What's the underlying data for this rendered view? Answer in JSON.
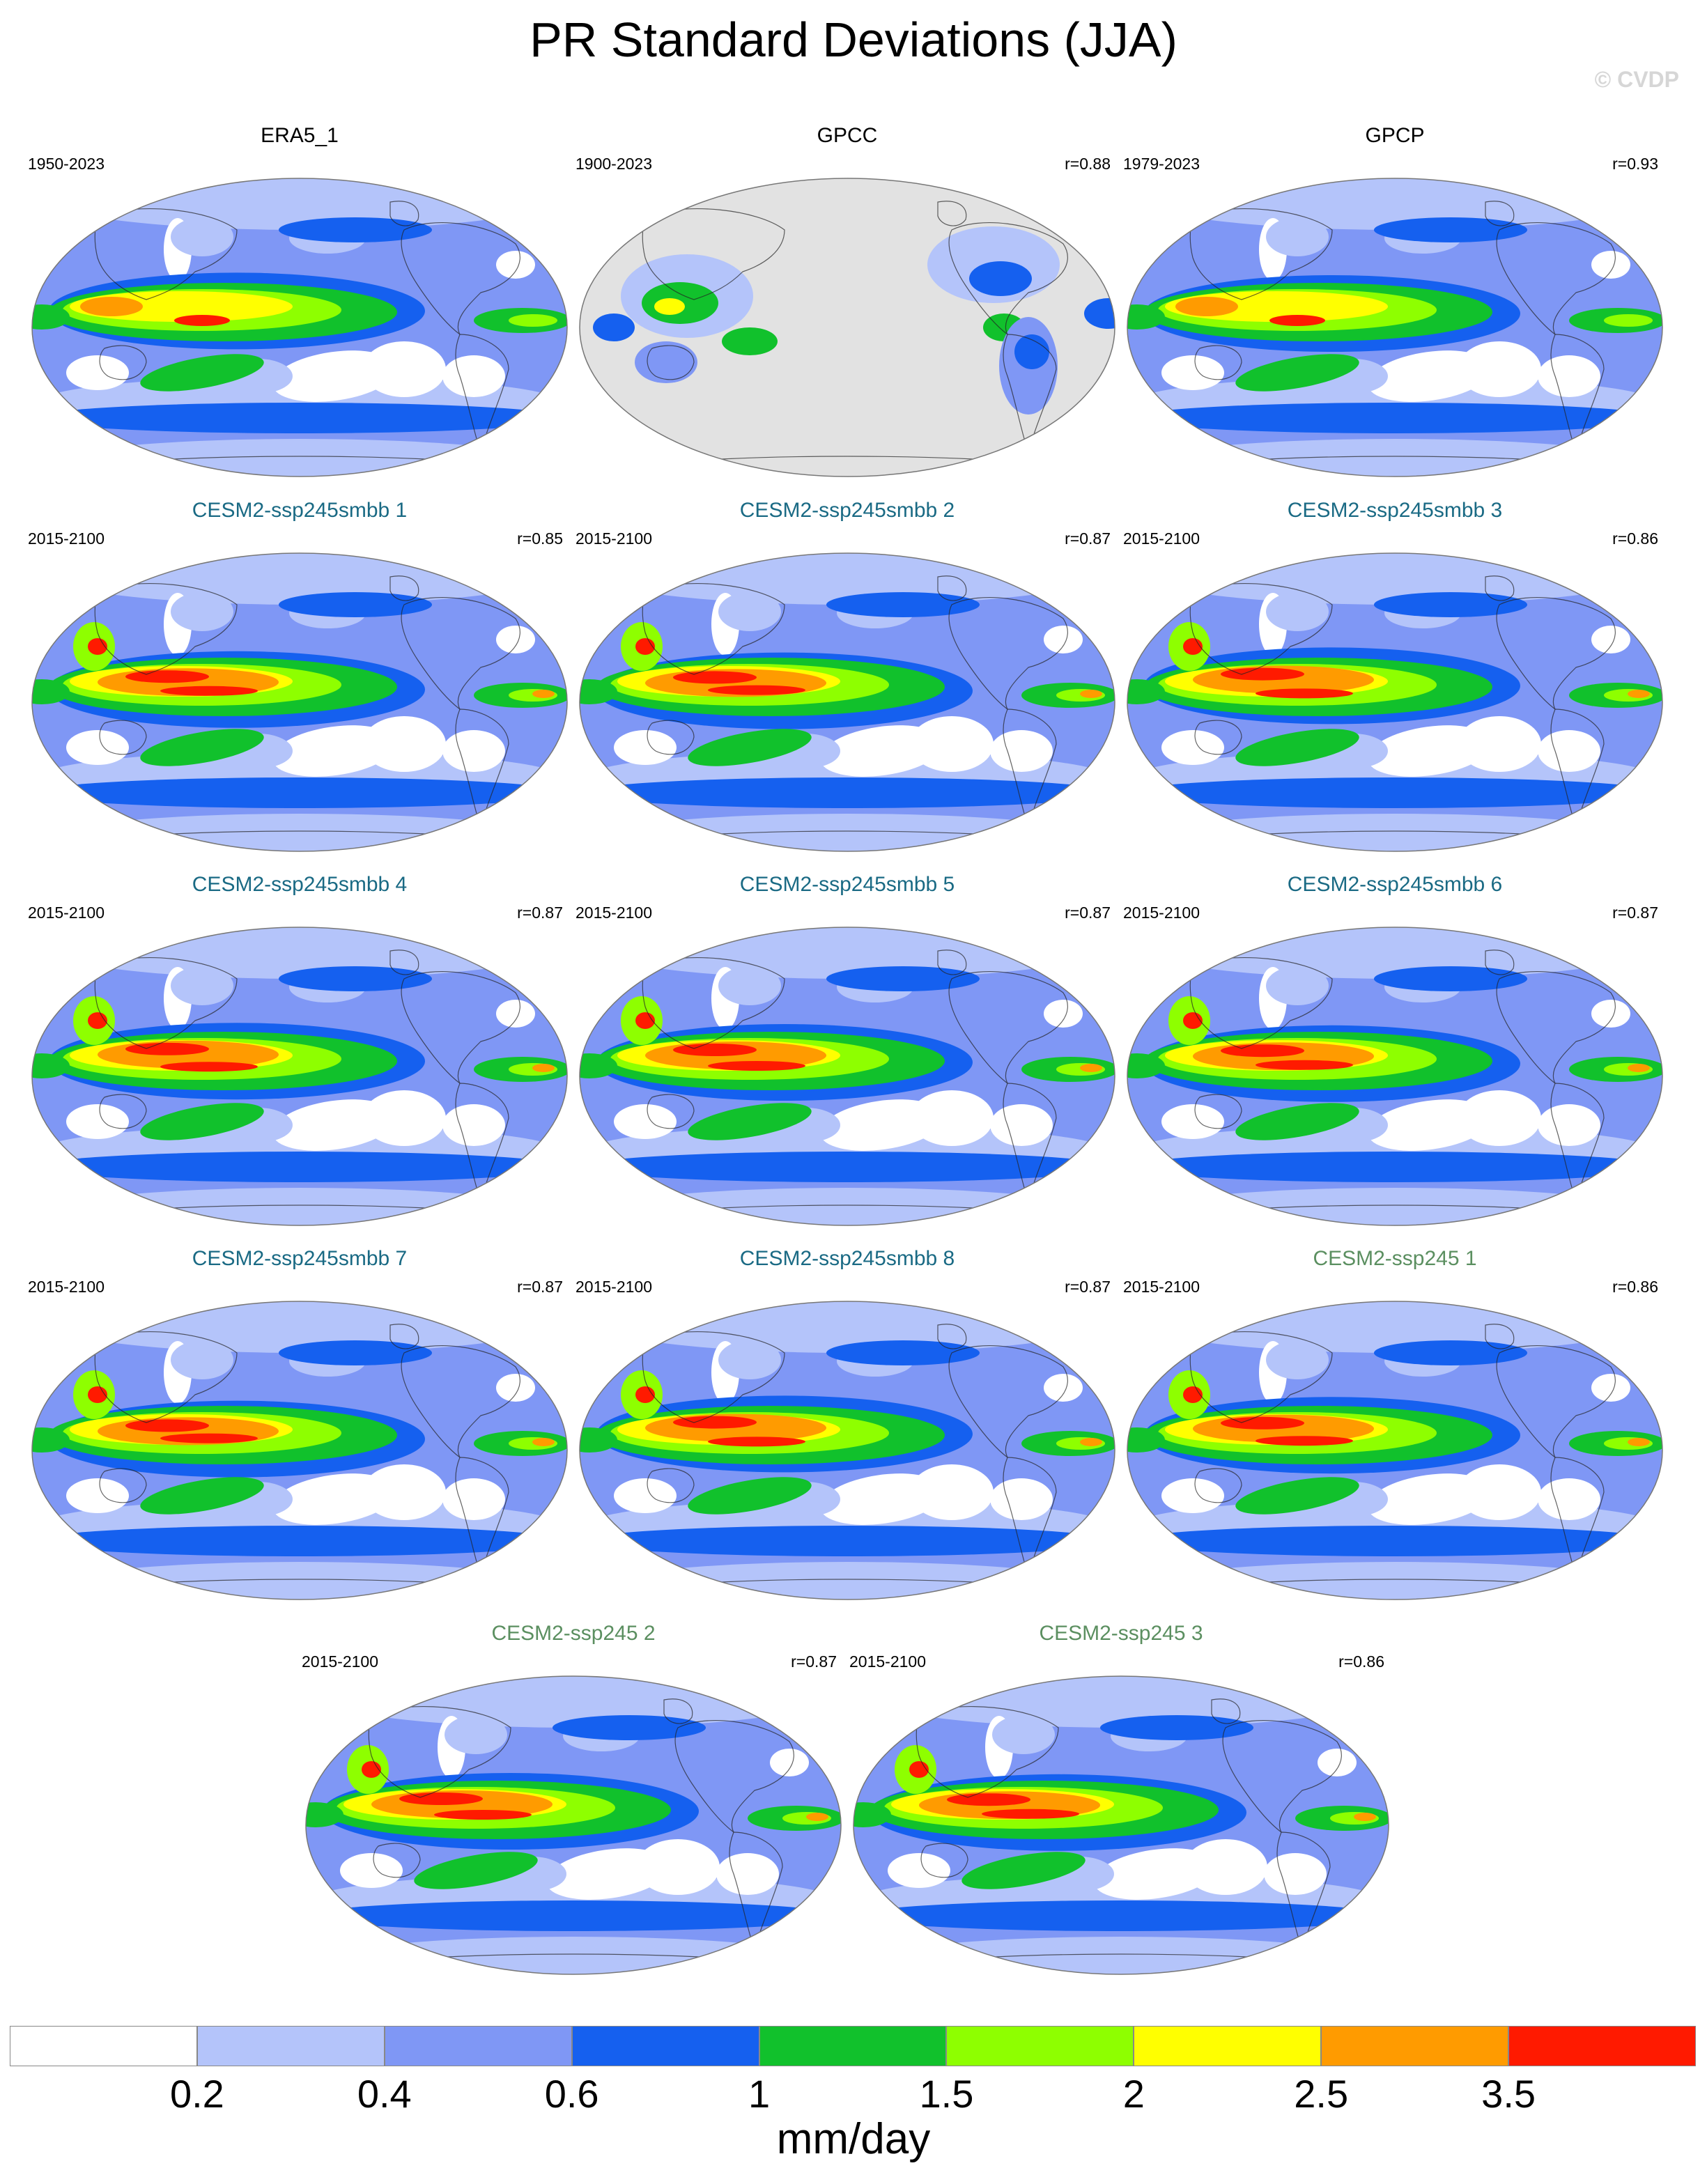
{
  "title": "PR Standard Deviations (JJA)",
  "credit": "© CVDP",
  "colors": {
    "levels": [
      "#ffffff",
      "#b4c4fa",
      "#7f97f5",
      "#1560ef",
      "#11c12c",
      "#8eff00",
      "#ffff00",
      "#ff9b00",
      "#ff1a00"
    ],
    "land_mask": "#e2e2e2",
    "coast": "#222222"
  },
  "panels": [
    {
      "title": "ERA5_1",
      "period": "1950-2023",
      "r": "",
      "kind": "obs",
      "variant": 0
    },
    {
      "title": "GPCC",
      "period": "1900-2023",
      "r": "r=0.88",
      "kind": "obs",
      "variant": 1,
      "land_only": true
    },
    {
      "title": "GPCP",
      "period": "1979-2023",
      "r": "r=0.93",
      "kind": "obs",
      "variant": 2
    },
    {
      "title": "CESM2-ssp245smbb 1",
      "period": "2015-2100",
      "r": "r=0.85",
      "kind": "smbb",
      "variant": 3
    },
    {
      "title": "CESM2-ssp245smbb 2",
      "period": "2015-2100",
      "r": "r=0.87",
      "kind": "smbb",
      "variant": 4
    },
    {
      "title": "CESM2-ssp245smbb 3",
      "period": "2015-2100",
      "r": "r=0.86",
      "kind": "smbb",
      "variant": 5
    },
    {
      "title": "CESM2-ssp245smbb 4",
      "period": "2015-2100",
      "r": "r=0.87",
      "kind": "smbb",
      "variant": 6
    },
    {
      "title": "CESM2-ssp245smbb 5",
      "period": "2015-2100",
      "r": "r=0.87",
      "kind": "smbb",
      "variant": 7
    },
    {
      "title": "CESM2-ssp245smbb 6",
      "period": "2015-2100",
      "r": "r=0.87",
      "kind": "smbb",
      "variant": 8
    },
    {
      "title": "CESM2-ssp245smbb 7",
      "period": "2015-2100",
      "r": "r=0.87",
      "kind": "smbb",
      "variant": 9
    },
    {
      "title": "CESM2-ssp245smbb 8",
      "period": "2015-2100",
      "r": "r=0.87",
      "kind": "smbb",
      "variant": 10
    },
    {
      "title": "CESM2-ssp245 1",
      "period": "2015-2100",
      "r": "r=0.86",
      "kind": "ssp",
      "variant": 11
    },
    {
      "title": "CESM2-ssp245 2",
      "period": "2015-2100",
      "r": "r=0.87",
      "kind": "ssp",
      "variant": 12
    },
    {
      "title": "CESM2-ssp245 3",
      "period": "2015-2100",
      "r": "r=0.86",
      "kind": "ssp",
      "variant": 13
    }
  ],
  "colorbar": {
    "labels": [
      "0.2",
      "0.4",
      "0.6",
      "1",
      "1.5",
      "2",
      "2.5",
      "3.5"
    ],
    "units": "mm/day"
  }
}
